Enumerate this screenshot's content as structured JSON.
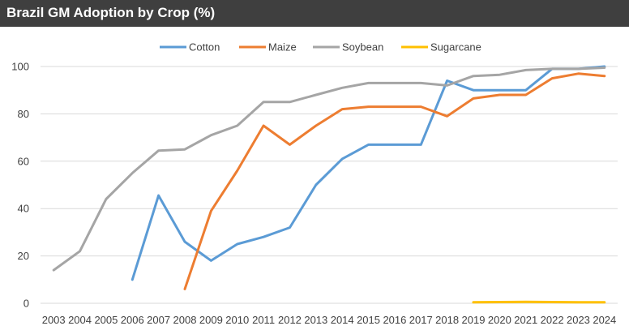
{
  "chart_data": {
    "type": "line",
    "title": "Brazil GM Adoption by Crop (%)",
    "xlabel": "",
    "ylabel": "",
    "ylim": [
      0,
      100
    ],
    "yticks": [
      "0",
      "20",
      "40",
      "60",
      "80",
      "100"
    ],
    "grid": true,
    "legend_position": "top",
    "categories": [
      "2003",
      "2004",
      "2005",
      "2006",
      "2007",
      "2008",
      "2009",
      "2010",
      "2011",
      "2012",
      "2013",
      "2014",
      "2015",
      "2016",
      "2017",
      "2018",
      "2019",
      "2020",
      "2021",
      "2022",
      "2023",
      "2024"
    ],
    "series": [
      {
        "name": "Cotton",
        "color": "#5b9bd5",
        "values": [
          null,
          null,
          null,
          10,
          45.5,
          26,
          18,
          25,
          28,
          32,
          50,
          61,
          67,
          67,
          67,
          94,
          90,
          90,
          90,
          99,
          99,
          100
        ]
      },
      {
        "name": "Maize",
        "color": "#ed7d31",
        "values": [
          null,
          null,
          null,
          null,
          null,
          6,
          39,
          56,
          75,
          67,
          75,
          82,
          83,
          83,
          83,
          79,
          86.5,
          88,
          88,
          95,
          97,
          96
        ]
      },
      {
        "name": "Soybean",
        "color": "#a5a5a5",
        "values": [
          14,
          22,
          44,
          55,
          64.5,
          65,
          71,
          75,
          85,
          85,
          88,
          91,
          93,
          93,
          93,
          92,
          96,
          96.5,
          98.5,
          99,
          99,
          99.5
        ]
      },
      {
        "name": "Sugarcane",
        "color": "#ffc000",
        "values": [
          null,
          null,
          null,
          null,
          null,
          null,
          null,
          null,
          null,
          null,
          null,
          null,
          null,
          null,
          null,
          null,
          0.4,
          0.5,
          0.6,
          0.5,
          0.4,
          0.4
        ]
      }
    ]
  }
}
